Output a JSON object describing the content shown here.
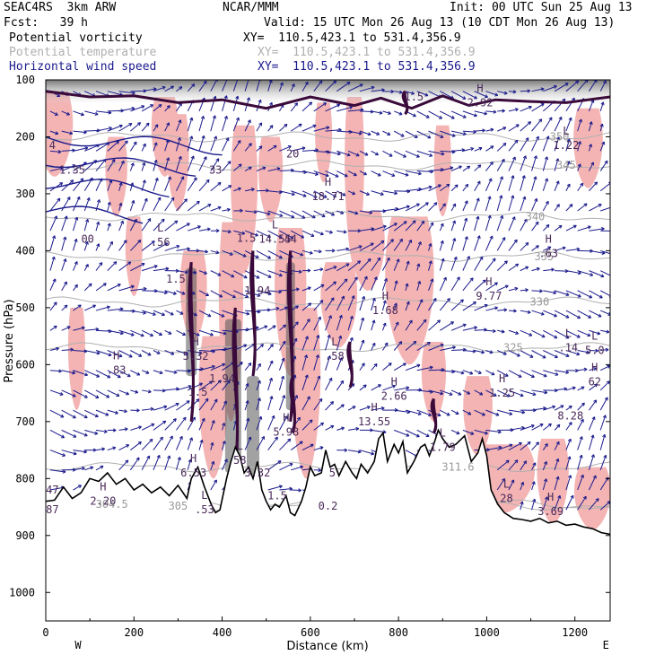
{
  "header": {
    "model": "SEAC4RS  3km ARW",
    "org": "NCAR/MMM",
    "init": "Init: 00 UTC Sun 25 Aug 13",
    "fcst": "Fcst:   39 h",
    "valid": "Valid: 15 UTC Mon 26 Aug 13 (10 CDT Mon 26 Aug 13)",
    "fields": [
      {
        "name": "Potential vorticity",
        "xy": "XY=  110.5,423.1 to 531.4,356.9",
        "color": "#000000"
      },
      {
        "name": "Potential temperature",
        "xy": "XY=  110.5,423.1 to 531.4,356.9",
        "color": "#b0b0b0"
      },
      {
        "name": "Horizontal wind speed",
        "xy": "XY=  110.5,423.1 to 531.4,356.9",
        "color": "#1a1a8c"
      }
    ]
  },
  "colors": {
    "pv_fill": "#f4b4b4",
    "pv_contour": "#3a0a3a",
    "theta_contour": "#b0b0b0",
    "wind": "#1a1a8c",
    "terrain": "#000000",
    "shade": "#555555"
  },
  "chart_data": {
    "type": "cross-section",
    "title": "",
    "xlabel": "Distance (km)",
    "ylabel": "Pressure (hPa)",
    "xlim": [
      0,
      1280
    ],
    "ylim": [
      1050,
      100
    ],
    "x_ticks": [
      0,
      200,
      400,
      600,
      800,
      1000,
      1200
    ],
    "y_ticks": [
      100,
      200,
      300,
      400,
      500,
      600,
      700,
      800,
      900,
      1000
    ],
    "endpoints": [
      {
        "x": 0,
        "label": "W"
      },
      {
        "x": 1250,
        "label": "E"
      }
    ],
    "terrain": [
      [
        0,
        840
      ],
      [
        20,
        838
      ],
      [
        40,
        815
      ],
      [
        60,
        835
      ],
      [
        80,
        825
      ],
      [
        100,
        800
      ],
      [
        120,
        805
      ],
      [
        140,
        790
      ],
      [
        160,
        810
      ],
      [
        180,
        800
      ],
      [
        200,
        820
      ],
      [
        220,
        810
      ],
      [
        240,
        825
      ],
      [
        260,
        815
      ],
      [
        280,
        830
      ],
      [
        300,
        812
      ],
      [
        320,
        835
      ],
      [
        330,
        800
      ],
      [
        345,
        780
      ],
      [
        360,
        815
      ],
      [
        375,
        845
      ],
      [
        385,
        860
      ],
      [
        395,
        855
      ],
      [
        410,
        800
      ],
      [
        420,
        770
      ],
      [
        430,
        745
      ],
      [
        440,
        760
      ],
      [
        450,
        790
      ],
      [
        460,
        780
      ],
      [
        470,
        800
      ],
      [
        480,
        770
      ],
      [
        490,
        820
      ],
      [
        500,
        840
      ],
      [
        510,
        855
      ],
      [
        520,
        845
      ],
      [
        530,
        850
      ],
      [
        545,
        830
      ],
      [
        555,
        860
      ],
      [
        565,
        865
      ],
      [
        580,
        840
      ],
      [
        590,
        815
      ],
      [
        600,
        780
      ],
      [
        610,
        795
      ],
      [
        625,
        790
      ],
      [
        635,
        750
      ],
      [
        645,
        780
      ],
      [
        655,
        775
      ],
      [
        665,
        795
      ],
      [
        680,
        770
      ],
      [
        695,
        790
      ],
      [
        705,
        800
      ],
      [
        715,
        775
      ],
      [
        730,
        790
      ],
      [
        745,
        770
      ],
      [
        755,
        730
      ],
      [
        765,
        720
      ],
      [
        775,
        770
      ],
      [
        790,
        740
      ],
      [
        800,
        755
      ],
      [
        810,
        735
      ],
      [
        820,
        790
      ],
      [
        835,
        770
      ],
      [
        850,
        745
      ],
      [
        860,
        740
      ],
      [
        870,
        760
      ],
      [
        880,
        740
      ],
      [
        890,
        715
      ],
      [
        900,
        730
      ],
      [
        915,
        745
      ],
      [
        930,
        740
      ],
      [
        950,
        725
      ],
      [
        965,
        770
      ],
      [
        980,
        755
      ],
      [
        990,
        730
      ],
      [
        1000,
        760
      ],
      [
        1010,
        820
      ],
      [
        1025,
        845
      ],
      [
        1040,
        860
      ],
      [
        1060,
        870
      ],
      [
        1080,
        872
      ],
      [
        1100,
        875
      ],
      [
        1120,
        870
      ],
      [
        1140,
        878
      ],
      [
        1160,
        875
      ],
      [
        1180,
        882
      ],
      [
        1200,
        880
      ],
      [
        1220,
        885
      ],
      [
        1240,
        888
      ],
      [
        1260,
        895
      ],
      [
        1280,
        898
      ]
    ],
    "theta_levels": [
      {
        "label": "304.5",
        "x": 150,
        "p": 845
      },
      {
        "label": "305",
        "x": 300,
        "p": 848
      },
      {
        "label": "311.6",
        "x": 935,
        "p": 780
      },
      {
        "label": "325",
        "x": 1060,
        "p": 570
      },
      {
        "label": "330",
        "x": 1120,
        "p": 490
      },
      {
        "label": "335",
        "x": 1130,
        "p": 410
      },
      {
        "label": "340",
        "x": 1110,
        "p": 340
      },
      {
        "label": "345",
        "x": 1180,
        "p": 250
      },
      {
        "label": "350",
        "x": 1165,
        "p": 200
      }
    ],
    "extrema": [
      {
        "kind": "H",
        "value": "2.92",
        "x": 985,
        "p": 140
      },
      {
        "kind": "L",
        "value": "1.22",
        "x": 1180,
        "p": 215
      },
      {
        "kind": "",
        "value": "1.5",
        "x": 835,
        "p": 130
      },
      {
        "kind": "",
        "value": "4",
        "x": 15,
        "p": 215
      },
      {
        "kind": "",
        "value": "1.35",
        "x": 60,
        "p": 258
      },
      {
        "kind": "",
        "value": "33",
        "x": 385,
        "p": 258
      },
      {
        "kind": "",
        "value": "20",
        "x": 560,
        "p": 230
      },
      {
        "kind": "H",
        "value": "18.71",
        "x": 640,
        "p": 305
      },
      {
        "kind": "",
        "value": "00",
        "x": 95,
        "p": 380
      },
      {
        "kind": "L",
        "value": ".56",
        "x": 260,
        "p": 385
      },
      {
        "kind": "",
        "value": "1.5",
        "x": 455,
        "p": 378
      },
      {
        "kind": "L",
        "value": "14.55",
        "x": 520,
        "p": 380
      },
      {
        "kind": "",
        "value": "44",
        "x": 555,
        "p": 380
      },
      {
        "kind": "H",
        "value": ".63",
        "x": 1140,
        "p": 405
      },
      {
        "kind": "",
        "value": "1.5",
        "x": 295,
        "p": 450
      },
      {
        "kind": "",
        "value": "1.94",
        "x": 480,
        "p": 470
      },
      {
        "kind": "H",
        "value": "1.68",
        "x": 770,
        "p": 505
      },
      {
        "kind": "H",
        "value": "9.77",
        "x": 1005,
        "p": 480
      },
      {
        "kind": "H",
        "value": "5.32",
        "x": 340,
        "p": 585
      },
      {
        "kind": "H",
        "value": ".83",
        "x": 160,
        "p": 610
      },
      {
        "kind": "L",
        "value": ".58",
        "x": 655,
        "p": 585
      },
      {
        "kind": "L",
        "value": ".14",
        "x": 1185,
        "p": 570
      },
      {
        "kind": "L",
        "value": "5.0",
        "x": 1245,
        "p": 575
      },
      {
        "kind": "",
        "value": "1.5",
        "x": 345,
        "p": 648
      },
      {
        "kind": "",
        "value": "1.94",
        "x": 400,
        "p": 625
      },
      {
        "kind": "H",
        "value": "1.25",
        "x": 1035,
        "p": 650
      },
      {
        "kind": "H",
        "value": "62",
        "x": 1245,
        "p": 630
      },
      {
        "kind": "H",
        "value": "2.66",
        "x": 790,
        "p": 655
      },
      {
        "kind": "",
        "value": "8.28",
        "x": 1190,
        "p": 690
      },
      {
        "kind": "H",
        "value": "13.55",
        "x": 745,
        "p": 700
      },
      {
        "kind": "H",
        "value": "5.98",
        "x": 545,
        "p": 718
      },
      {
        "kind": "L",
        "value": "1.79",
        "x": 900,
        "p": 745
      },
      {
        "kind": "H",
        "value": "6.53",
        "x": 335,
        "p": 790
      },
      {
        "kind": "L",
        "value": "58",
        "x": 440,
        "p": 768
      },
      {
        "kind": "",
        "value": "3.32",
        "x": 480,
        "p": 790
      },
      {
        "kind": "",
        "value": "5",
        "x": 650,
        "p": 790
      },
      {
        "kind": "L",
        "value": "28",
        "x": 1045,
        "p": 835
      },
      {
        "kind": "H",
        "value": "3.69",
        "x": 1145,
        "p": 858
      },
      {
        "kind": "",
        "value": "47",
        "x": 15,
        "p": 820
      },
      {
        "kind": "H",
        "value": "2.20",
        "x": 130,
        "p": 840
      },
      {
        "kind": "L",
        "value": ".53",
        "x": 360,
        "p": 855
      },
      {
        "kind": "",
        "value": "1.5",
        "x": 525,
        "p": 830
      },
      {
        "kind": "",
        "value": "0.2",
        "x": 640,
        "p": 848
      },
      {
        "kind": "",
        "value": "87",
        "x": 15,
        "p": 855
      }
    ],
    "pv_regions": [
      {
        "x": 20,
        "p0": 120,
        "p1": 270,
        "w": 30
      },
      {
        "x": 70,
        "p0": 500,
        "p1": 680,
        "w": 14
      },
      {
        "x": 160,
        "p0": 200,
        "p1": 340,
        "w": 18
      },
      {
        "x": 200,
        "p0": 340,
        "p1": 480,
        "w": 14
      },
      {
        "x": 270,
        "p0": 130,
        "p1": 270,
        "w": 22
      },
      {
        "x": 300,
        "p0": 160,
        "p1": 330,
        "w": 18
      },
      {
        "x": 335,
        "p0": 400,
        "p1": 560,
        "w": 22
      },
      {
        "x": 380,
        "p0": 550,
        "p1": 800,
        "w": 24
      },
      {
        "x": 420,
        "p0": 350,
        "p1": 700,
        "w": 20
      },
      {
        "x": 450,
        "p0": 180,
        "p1": 440,
        "w": 22
      },
      {
        "x": 510,
        "p0": 200,
        "p1": 350,
        "w": 20
      },
      {
        "x": 555,
        "p0": 360,
        "p1": 620,
        "w": 26
      },
      {
        "x": 590,
        "p0": 500,
        "p1": 800,
        "w": 24
      },
      {
        "x": 630,
        "p0": 140,
        "p1": 280,
        "w": 14
      },
      {
        "x": 665,
        "p0": 420,
        "p1": 570,
        "w": 30
      },
      {
        "x": 700,
        "p0": 130,
        "p1": 430,
        "w": 16
      },
      {
        "x": 730,
        "p0": 330,
        "p1": 470,
        "w": 28
      },
      {
        "x": 825,
        "p0": 340,
        "p1": 600,
        "w": 40
      },
      {
        "x": 880,
        "p0": 560,
        "p1": 700,
        "w": 20
      },
      {
        "x": 900,
        "p0": 180,
        "p1": 340,
        "w": 14
      },
      {
        "x": 980,
        "p0": 620,
        "p1": 760,
        "w": 24
      },
      {
        "x": 1040,
        "p0": 740,
        "p1": 860,
        "w": 50
      },
      {
        "x": 1150,
        "p0": 730,
        "p1": 880,
        "w": 26
      },
      {
        "x": 1230,
        "p0": 150,
        "p1": 290,
        "w": 24
      },
      {
        "x": 1240,
        "p0": 780,
        "p1": 890,
        "w": 30
      }
    ],
    "pv_contours": [
      {
        "x": 330,
        "p0": 420,
        "p1": 700
      },
      {
        "x": 430,
        "p0": 500,
        "p1": 780
      },
      {
        "x": 470,
        "p0": 400,
        "p1": 620
      },
      {
        "x": 555,
        "p0": 400,
        "p1": 700
      },
      {
        "x": 560,
        "p0": 620,
        "p1": 720
      },
      {
        "x": 690,
        "p0": 560,
        "p1": 640
      },
      {
        "x": 815,
        "p0": 120,
        "p1": 160
      },
      {
        "x": 880,
        "p0": 660,
        "p1": 720
      }
    ],
    "pv_tropopause": [
      [
        0,
        120
      ],
      [
        100,
        130
      ],
      [
        200,
        128
      ],
      [
        300,
        140
      ],
      [
        400,
        135
      ],
      [
        500,
        150
      ],
      [
        600,
        130
      ],
      [
        700,
        145
      ],
      [
        760,
        132
      ],
      [
        830,
        150
      ],
      [
        900,
        128
      ],
      [
        960,
        145
      ],
      [
        1020,
        135
      ],
      [
        1100,
        138
      ],
      [
        1180,
        140
      ],
      [
        1280,
        130
      ]
    ],
    "shaded": [
      {
        "x": 330,
        "p0": 430,
        "p1": 620,
        "w": 12
      },
      {
        "x": 425,
        "p0": 520,
        "p1": 790,
        "w": 18
      },
      {
        "x": 470,
        "p0": 620,
        "p1": 800,
        "w": 14
      },
      {
        "x": 555,
        "p0": 420,
        "p1": 680,
        "w": 10
      }
    ]
  }
}
